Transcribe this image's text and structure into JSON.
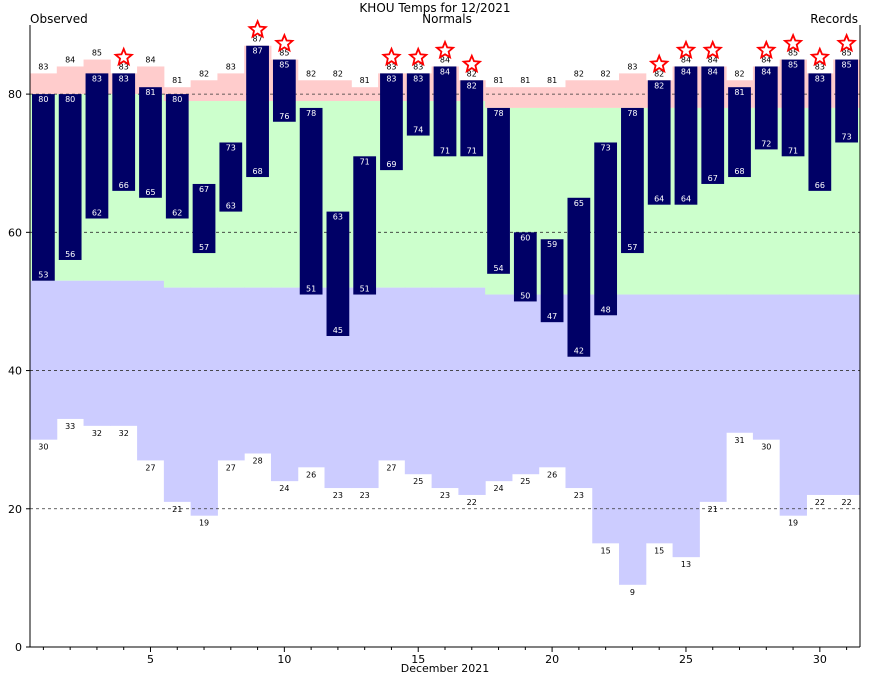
{
  "chart_data": {
    "type": "bar",
    "title": "KHOU Temps for 12/2021",
    "legend": {
      "observed": "Observed",
      "normals": "Normals",
      "records": "Records"
    },
    "xlabel": "December 2021",
    "ylabel": "",
    "ylim": [
      0,
      90
    ],
    "xlim": [
      0.5,
      31.5
    ],
    "x_ticks": [
      5,
      10,
      15,
      20,
      25,
      30
    ],
    "y_ticks": [
      0,
      20,
      40,
      60,
      80
    ],
    "grid_dashed": [
      20,
      40,
      60,
      80
    ],
    "days": [
      1,
      2,
      3,
      4,
      5,
      6,
      7,
      8,
      9,
      10,
      11,
      12,
      13,
      14,
      15,
      16,
      17,
      18,
      19,
      20,
      21,
      22,
      23,
      24,
      25,
      26,
      27,
      28,
      29,
      30,
      31
    ],
    "observed_high": [
      80,
      80,
      83,
      83,
      81,
      80,
      67,
      73,
      87,
      85,
      78,
      63,
      71,
      83,
      83,
      84,
      82,
      78,
      60,
      59,
      65,
      73,
      78,
      82,
      84,
      84,
      81,
      84,
      85,
      83,
      85
    ],
    "observed_low": [
      53,
      56,
      62,
      66,
      65,
      62,
      57,
      63,
      68,
      76,
      51,
      45,
      51,
      69,
      74,
      71,
      71,
      54,
      50,
      47,
      42,
      48,
      57,
      64,
      64,
      67,
      68,
      72,
      71,
      66,
      73
    ],
    "record_high": [
      83,
      84,
      85,
      83,
      84,
      81,
      82,
      83,
      87,
      85,
      82,
      82,
      81,
      83,
      83,
      84,
      82,
      81,
      81,
      81,
      82,
      82,
      83,
      82,
      84,
      84,
      82,
      84,
      85,
      83,
      85
    ],
    "record_low": [
      30,
      33,
      32,
      32,
      27,
      21,
      19,
      27,
      28,
      24,
      26,
      23,
      23,
      27,
      25,
      23,
      22,
      24,
      25,
      26,
      23,
      15,
      9,
      15,
      13,
      21,
      31,
      30,
      19,
      22,
      22
    ],
    "normal_high": [
      80,
      80,
      80,
      80,
      80,
      79,
      79,
      79,
      79,
      79,
      79,
      79,
      79,
      79,
      79,
      79,
      79,
      78,
      78,
      78,
      78,
      78,
      78,
      78,
      78,
      78,
      78,
      78,
      78,
      78,
      78
    ],
    "normal_low": [
      53,
      53,
      53,
      53,
      53,
      52,
      52,
      52,
      52,
      52,
      52,
      52,
      52,
      52,
      52,
      52,
      52,
      51,
      51,
      51,
      51,
      51,
      51,
      51,
      51,
      51,
      51,
      51,
      51,
      51,
      51
    ],
    "record_set_days": [
      4,
      9,
      10,
      14,
      15,
      16,
      17,
      24,
      25,
      26,
      28,
      29,
      30,
      31
    ],
    "colors": {
      "observed_bar": "#000066",
      "record_high_band": "#ffcccc",
      "normal_band": "#ccffcc",
      "record_low_band": "#ccccff",
      "observed_title": "#000080",
      "normals_title": "#008000",
      "records_title": "#9966cc",
      "star": "#ff0000"
    }
  }
}
